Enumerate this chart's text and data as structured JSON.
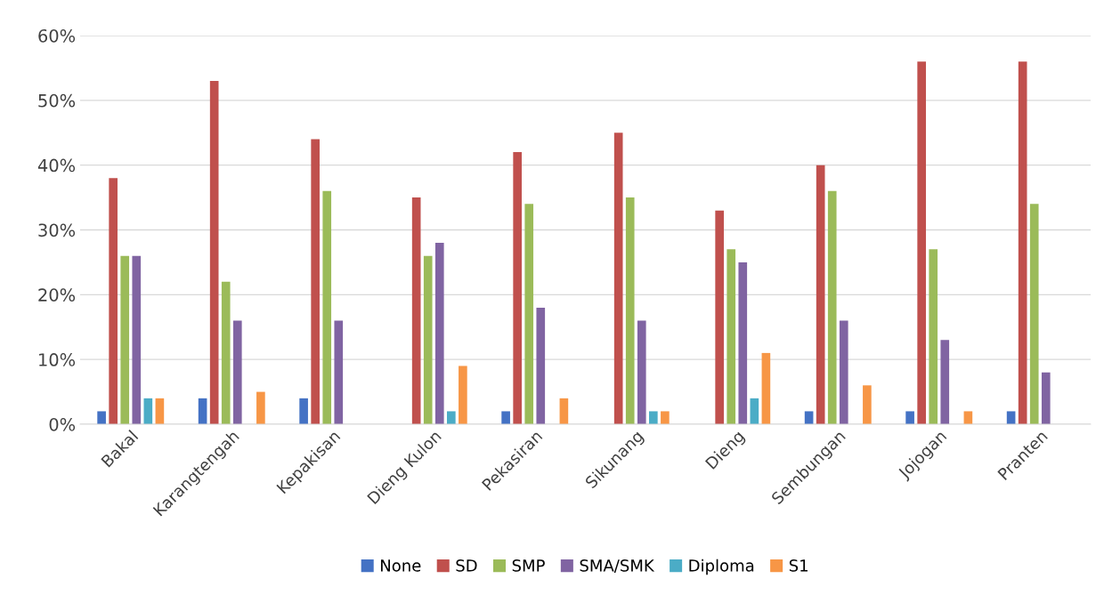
{
  "chart_data": {
    "type": "bar",
    "categories": [
      "Bakal",
      "Karangtengah",
      "Kepakisan",
      "Dieng Kulon",
      "Pekasiran",
      "Sikunang",
      "Dieng",
      "Sembungan",
      "Jojogan",
      "Pranten"
    ],
    "series": [
      {
        "name": "None",
        "color": "#4472c4",
        "values": [
          2,
          4,
          4,
          0,
          2,
          0,
          0,
          2,
          2,
          2
        ]
      },
      {
        "name": "SD",
        "color": "#c0504d",
        "values": [
          38,
          53,
          44,
          35,
          42,
          45,
          33,
          40,
          56,
          56
        ]
      },
      {
        "name": "SMP",
        "color": "#9bbb59",
        "values": [
          26,
          22,
          36,
          26,
          34,
          35,
          27,
          36,
          27,
          34
        ]
      },
      {
        "name": "SMA/SMK",
        "color": "#8064a2",
        "values": [
          26,
          16,
          16,
          28,
          18,
          16,
          25,
          16,
          13,
          8
        ]
      },
      {
        "name": "Diploma",
        "color": "#4bacc6",
        "values": [
          4,
          0,
          0,
          2,
          0,
          2,
          4,
          0,
          0,
          0
        ]
      },
      {
        "name": "S1",
        "color": "#f79646",
        "values": [
          4,
          5,
          0,
          9,
          4,
          2,
          11,
          6,
          2,
          0
        ]
      }
    ],
    "ylim": [
      0,
      60
    ],
    "yticks": [
      {
        "value": 0,
        "label": "0%"
      },
      {
        "value": 10,
        "label": "10%"
      },
      {
        "value": 20,
        "label": "20%"
      },
      {
        "value": 30,
        "label": "30%"
      },
      {
        "value": 40,
        "label": "40%"
      },
      {
        "value": 50,
        "label": "50%"
      },
      {
        "value": 60,
        "label": "60%"
      }
    ],
    "grid": "y",
    "legend": "bottom"
  }
}
